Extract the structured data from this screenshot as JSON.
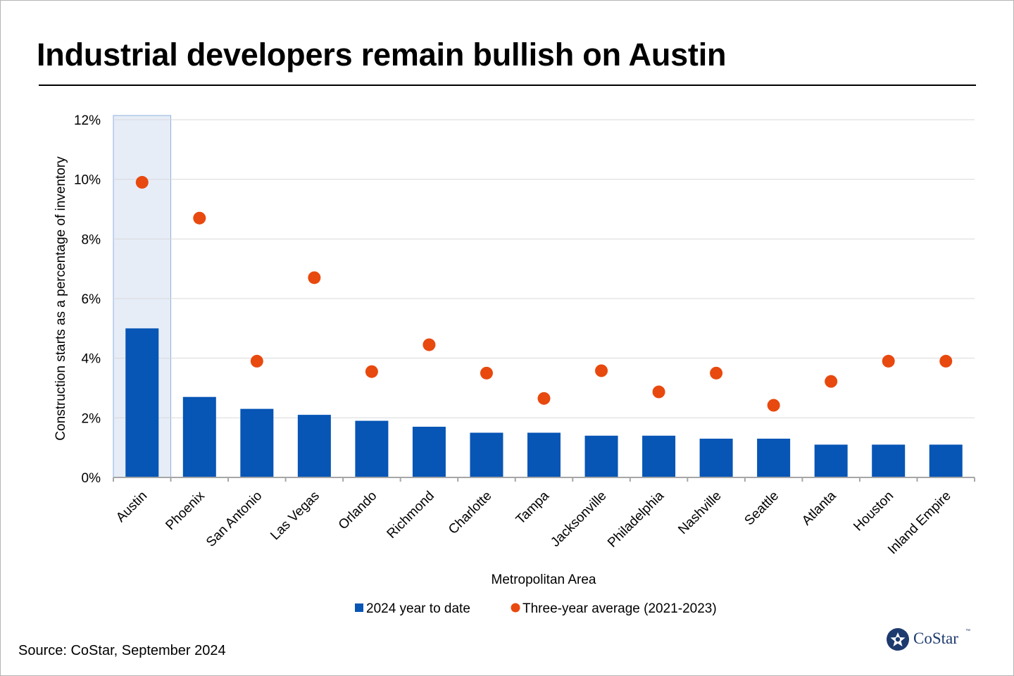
{
  "title": "Industrial developers remain bullish on Austin",
  "source": "Source: CoStar, September 2024",
  "logo": {
    "text": "CoStar",
    "tm": "™",
    "color": "#1d3a6e"
  },
  "colors": {
    "bar": "#0755b5",
    "dot": "#e8490f",
    "highlight_fill": "#e6edf7",
    "highlight_stroke": "#8fb0dc",
    "grid": "#d9d9d9",
    "axis": "#a6a6a6"
  },
  "chart_data": {
    "type": "bar",
    "title": "Industrial developers remain bullish on Austin",
    "xlabel": "Metropolitan Area",
    "ylabel": "Construction starts as a percentage of inventory",
    "ylim": [
      0,
      12
    ],
    "yticks": [
      0,
      2,
      4,
      6,
      8,
      10,
      12
    ],
    "ytick_format": "%",
    "grid": true,
    "legend_position": "bottom",
    "highlight_category": "Austin",
    "categories": [
      "Austin",
      "Phoenix",
      "San Antonio",
      "Las Vegas",
      "Orlando",
      "Richmond",
      "Charlotte",
      "Tampa",
      "Jacksonville",
      "Philadelphia",
      "Nashville",
      "Seattle",
      "Atlanta",
      "Houston",
      "Inland Empire"
    ],
    "series": [
      {
        "name": "2024 year to date",
        "type": "bar",
        "color": "#0755b5",
        "values": [
          5.0,
          2.7,
          2.3,
          2.1,
          1.9,
          1.7,
          1.5,
          1.5,
          1.4,
          1.4,
          1.3,
          1.3,
          1.1,
          1.1,
          1.1
        ]
      },
      {
        "name": "Three-year average (2021-2023)",
        "type": "scatter",
        "color": "#e8490f",
        "values": [
          9.9,
          8.7,
          3.9,
          6.7,
          3.55,
          4.45,
          3.5,
          2.65,
          3.58,
          2.87,
          3.5,
          2.42,
          3.22,
          3.9,
          3.9
        ]
      }
    ]
  }
}
